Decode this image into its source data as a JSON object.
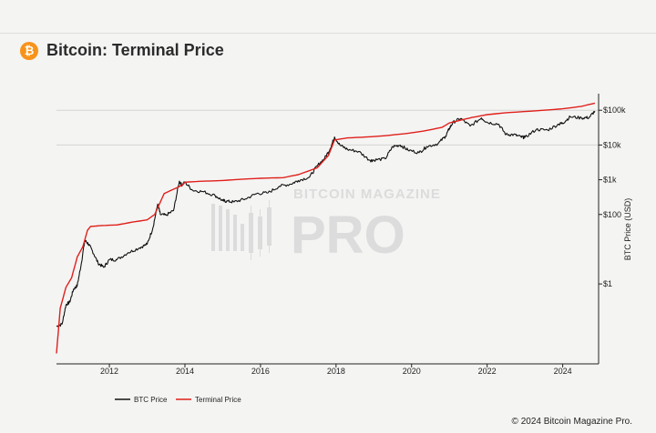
{
  "header": {
    "logo_glyph": "₿",
    "title": "Bitcoin: Terminal Price"
  },
  "watermark": {
    "line1": "BITCOIN MAGAZINE",
    "line2": "PRO"
  },
  "footer": {
    "copyright": "© 2024 Bitcoin Magazine Pro."
  },
  "colors": {
    "btc_price": "#111111",
    "terminal_price": "#e0201b",
    "logo": "#f7931a"
  },
  "chart_data": {
    "type": "line",
    "title": "Bitcoin: Terminal Price",
    "xlabel": "",
    "ylabel": "BTC Price (USD)",
    "y_scale": "log",
    "y_axis_position": "right",
    "xlim": [
      2010.6,
      2024.95
    ],
    "ylim": [
      0.005,
      300000
    ],
    "x_ticks": [
      {
        "value": 2012,
        "label": "2012"
      },
      {
        "value": 2014,
        "label": "2014"
      },
      {
        "value": 2016,
        "label": "2016"
      },
      {
        "value": 2018,
        "label": "2018"
      },
      {
        "value": 2020,
        "label": "2020"
      },
      {
        "value": 2022,
        "label": "2022"
      },
      {
        "value": 2024,
        "label": "2024"
      }
    ],
    "y_ticks": [
      {
        "value": 1,
        "label": "$1"
      },
      {
        "value": 100,
        "label": "$100"
      },
      {
        "value": 1000,
        "label": "$1k"
      },
      {
        "value": 10000,
        "label": "$10k"
      },
      {
        "value": 100000,
        "label": "$100k"
      }
    ],
    "gridlines_at": [
      10000,
      100000
    ],
    "legend": {
      "position": "bottom-left",
      "entries": [
        "BTC Price",
        "Terminal Price"
      ]
    },
    "series": [
      {
        "name": "BTC Price",
        "color": "#111111",
        "x": [
          2010.6,
          2010.75,
          2010.85,
          2010.95,
          2011.05,
          2011.15,
          2011.25,
          2011.35,
          2011.45,
          2011.55,
          2011.7,
          2011.85,
          2012.0,
          2012.2,
          2012.5,
          2012.8,
          2013.0,
          2013.15,
          2013.28,
          2013.35,
          2013.5,
          2013.7,
          2013.85,
          2013.92,
          2014.0,
          2014.2,
          2014.5,
          2014.8,
          2015.0,
          2015.1,
          2015.3,
          2015.6,
          2015.9,
          2016.2,
          2016.5,
          2016.8,
          2017.0,
          2017.3,
          2017.5,
          2017.7,
          2017.85,
          2017.96,
          2018.1,
          2018.3,
          2018.6,
          2018.9,
          2019.0,
          2019.3,
          2019.5,
          2019.7,
          2019.9,
          2020.2,
          2020.4,
          2020.7,
          2020.9,
          2021.0,
          2021.1,
          2021.3,
          2021.55,
          2021.85,
          2022.0,
          2022.3,
          2022.5,
          2022.7,
          2022.9,
          2023.0,
          2023.3,
          2023.6,
          2023.9,
          2024.0,
          2024.2,
          2024.5,
          2024.7,
          2024.85
        ],
        "y": [
          0.06,
          0.07,
          0.25,
          0.3,
          0.7,
          0.9,
          3.5,
          18,
          14,
          9,
          4,
          3,
          5,
          5,
          8,
          11,
          14,
          40,
          200,
          100,
          95,
          130,
          900,
          700,
          850,
          500,
          450,
          350,
          250,
          240,
          230,
          280,
          400,
          420,
          650,
          750,
          950,
          1200,
          2500,
          4200,
          8000,
          17000,
          10000,
          7500,
          6500,
          3600,
          3700,
          4000,
          9000,
          10000,
          7200,
          6000,
          9000,
          11000,
          18000,
          30000,
          45000,
          58000,
          35000,
          60000,
          45000,
          40000,
          20000,
          20000,
          17000,
          16500,
          28000,
          27000,
          40000,
          43000,
          65000,
          60000,
          62000,
          95000
        ]
      },
      {
        "name": "Terminal Price",
        "color": "#e0201b",
        "x": [
          2010.6,
          2010.7,
          2010.85,
          2011.0,
          2011.15,
          2011.3,
          2011.42,
          2011.5,
          2011.8,
          2012.2,
          2012.6,
          2013.0,
          2013.2,
          2013.45,
          2013.8,
          2013.93,
          2014.0,
          2014.4,
          2015.0,
          2015.6,
          2016.0,
          2016.6,
          2017.0,
          2017.5,
          2017.8,
          2017.96,
          2018.3,
          2018.8,
          2019.3,
          2019.8,
          2020.3,
          2020.8,
          2021.0,
          2021.3,
          2021.6,
          2022.0,
          2022.5,
          2023.0,
          2023.5,
          2024.0,
          2024.5,
          2024.85
        ],
        "y": [
          0.01,
          0.2,
          0.8,
          1.5,
          6,
          12,
          35,
          45,
          48,
          50,
          60,
          70,
          100,
          400,
          600,
          700,
          850,
          900,
          950,
          1050,
          1100,
          1150,
          1400,
          2200,
          5000,
          14000,
          16000,
          17000,
          18500,
          21000,
          25000,
          32000,
          43000,
          52000,
          62000,
          75000,
          85000,
          92000,
          100000,
          110000,
          130000,
          160000
        ]
      }
    ]
  }
}
